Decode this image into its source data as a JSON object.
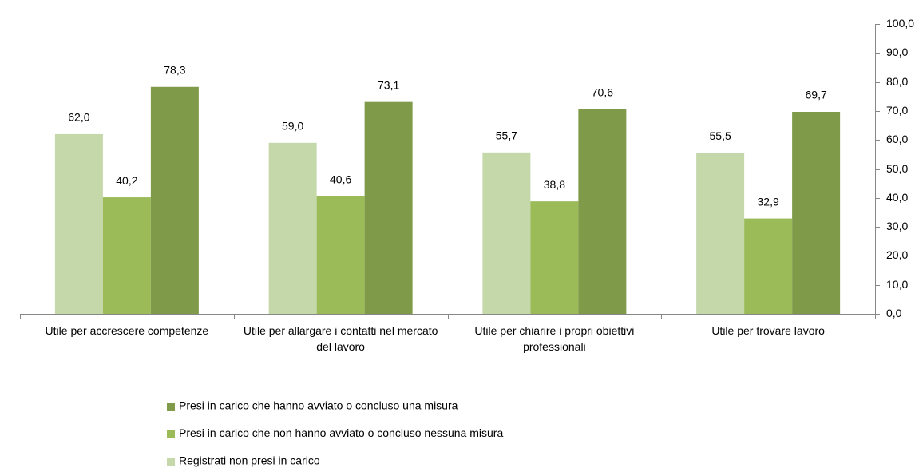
{
  "chart_data": {
    "type": "bar",
    "categories": [
      "Utile per accrescere competenze",
      "Utile per allargare i contatti nel mercato del lavoro",
      "Utile per chiarire i propri obiettivi professionali",
      "Utile per trovare lavoro"
    ],
    "series": [
      {
        "name": "Registrati non presi in carico",
        "color": "#c5d8aa",
        "values": [
          62.0,
          59.0,
          55.7,
          55.5
        ],
        "value_labels": [
          "62,0",
          "59,0",
          "55,7",
          "55,5"
        ]
      },
      {
        "name": "Presi in carico che non hanno avviato o concluso nessuna misura",
        "color": "#9bbb59",
        "values": [
          40.2,
          40.6,
          38.8,
          32.9
        ],
        "value_labels": [
          "40,2",
          "40,6",
          "38,8",
          "32,9"
        ]
      },
      {
        "name": "Presi in carico che hanno avviato o concluso una misura",
        "color": "#7f9b49",
        "values": [
          78.3,
          73.1,
          70.6,
          69.7
        ],
        "value_labels": [
          "78,3",
          "73,1",
          "70,6",
          "69,7"
        ]
      }
    ],
    "ylim": [
      0,
      100
    ],
    "yticks": [
      {
        "value": 0,
        "label": "0,0"
      },
      {
        "value": 10,
        "label": "10,0"
      },
      {
        "value": 20,
        "label": "20,0"
      },
      {
        "value": 30,
        "label": "30,0"
      },
      {
        "value": 40,
        "label": "40,0"
      },
      {
        "value": 50,
        "label": "50,0"
      },
      {
        "value": 60,
        "label": "60,0"
      },
      {
        "value": 70,
        "label": "70,0"
      },
      {
        "value": 80,
        "label": "80,0"
      },
      {
        "value": 90,
        "label": "90,0"
      },
      {
        "value": 100,
        "label": "100,0"
      }
    ],
    "legend": "bottom-left"
  }
}
